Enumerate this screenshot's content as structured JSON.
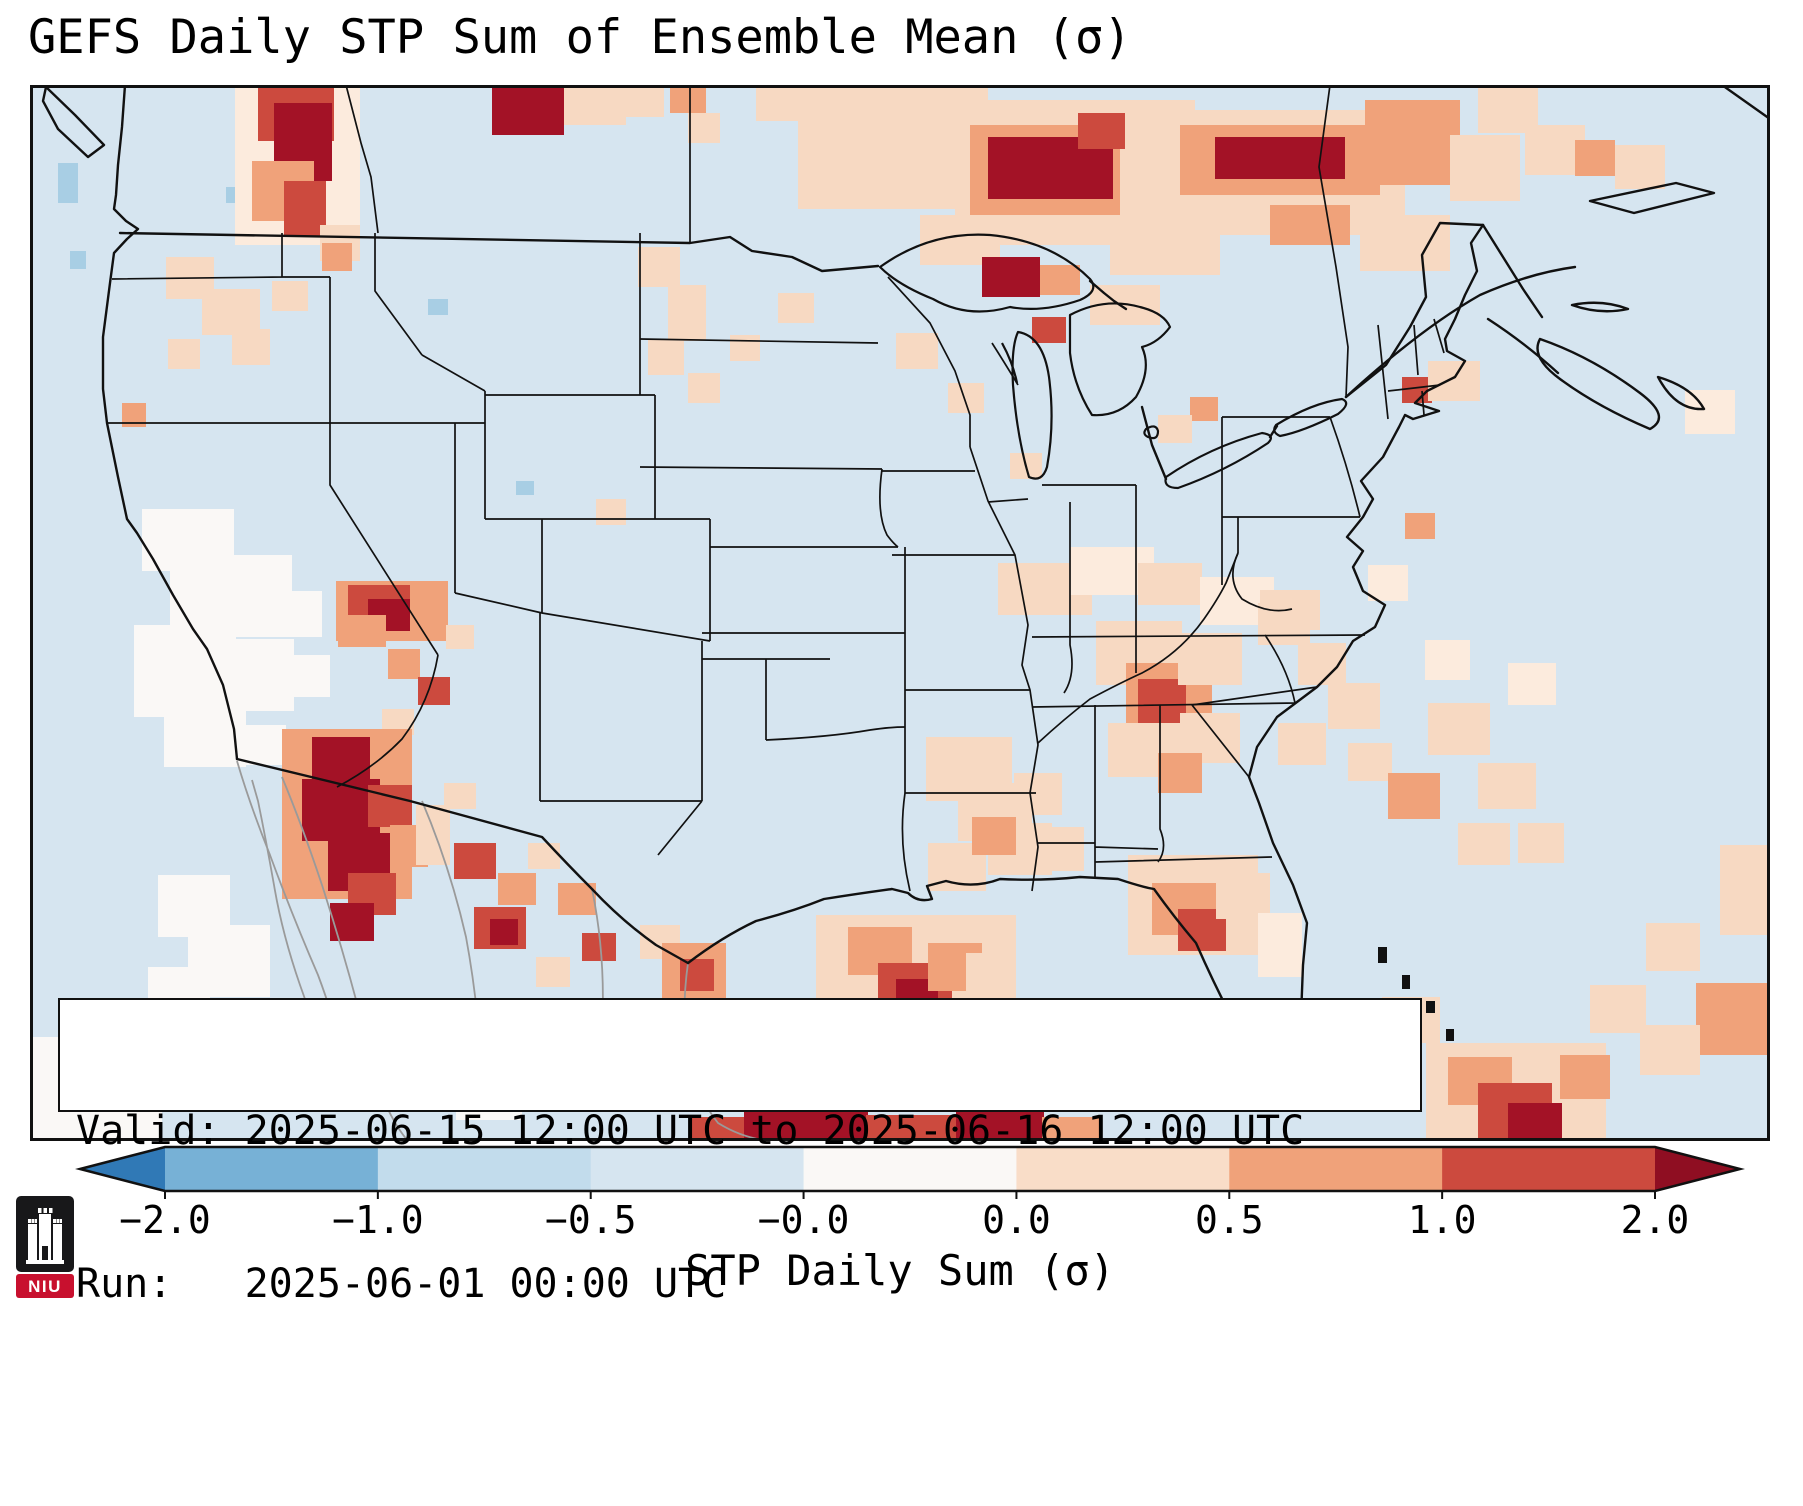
{
  "chart_data": {
    "type": "heatmap",
    "title": "GEFS Daily STP Sum of Ensemble Mean (σ)",
    "units": "σ",
    "annotation": {
      "line1": "Valid: 2025-06-15 12:00 UTC to 2025-06-16 12:00 UTC",
      "line2": "Run:   2025-06-01 00:00 UTC"
    },
    "colorbar": {
      "label": "STP Daily Sum (σ)",
      "tick_labels": [
        "−2.0",
        "−1.0",
        "−0.5",
        "−0.0",
        "0.0",
        "0.5",
        "1.0",
        "2.0"
      ],
      "segment_colors": [
        "#77b1d6",
        "#c2dcec",
        "#d6e5f0",
        "#faf8f6",
        "#f9ddc8",
        "#f0a27a",
        "#cc4a3e"
      ],
      "extend_low_color": "#3079b6",
      "extend_high_color": "#8f0e22",
      "orientation": "horizontal"
    },
    "background_value_class": "bg",
    "value_classes": {
      "b": {
        "color": "#a8cee4",
        "range": "-1.0 to -0.5 σ"
      },
      "bg": {
        "color": "#d6e5f0",
        "range": "-0.5 to -0.0 σ"
      },
      "w": {
        "color": "#faf8f6",
        "range": "-0.0 to 0.0 σ"
      },
      "lp": {
        "color": "#fcebdd",
        "range": "0.0 to 0.5 σ (weak)"
      },
      "p": {
        "color": "#f7d9c2",
        "range": "0.0 to 0.5 σ"
      },
      "s": {
        "color": "#f0a27a",
        "range": "0.5 to 1.0 σ"
      },
      "r": {
        "color": "#cc4a3e",
        "range": "1.0 to 2.0 σ"
      },
      "dr": {
        "color": "#a31226",
        "range": "> 2.0 σ"
      }
    },
    "cells": [
      [
        "b",
        28,
        78,
        20,
        40
      ],
      [
        "b",
        40,
        166,
        16,
        18
      ],
      [
        "b",
        196,
        102,
        18,
        16
      ],
      [
        "b",
        398,
        214,
        20,
        16
      ],
      [
        "b",
        486,
        396,
        18,
        14
      ],
      [
        "w",
        112,
        424,
        92,
        62
      ],
      [
        "w",
        140,
        470,
        122,
        82
      ],
      [
        "w",
        104,
        540,
        102,
        92
      ],
      [
        "w",
        172,
        554,
        92,
        72
      ],
      [
        "w",
        230,
        506,
        62,
        46
      ],
      [
        "w",
        254,
        570,
        46,
        42
      ],
      [
        "w",
        134,
        626,
        82,
        56
      ],
      [
        "w",
        196,
        640,
        60,
        40
      ],
      [
        "w",
        128,
        790,
        72,
        62
      ],
      [
        "w",
        158,
        840,
        82,
        72
      ],
      [
        "w",
        118,
        882,
        62,
        52
      ],
      [
        "w",
        0,
        952,
        132,
        104
      ],
      [
        "w",
        330,
        952,
        64,
        46
      ],
      [
        "w",
        210,
        920,
        56,
        46
      ],
      [
        "w",
        426,
        975,
        66,
        60
      ],
      [
        "lp",
        205,
        0,
        125,
        160
      ],
      [
        "r",
        228,
        0,
        76,
        56
      ],
      [
        "dr",
        244,
        18,
        58,
        78
      ],
      [
        "s",
        222,
        76,
        62,
        60
      ],
      [
        "r",
        254,
        96,
        42,
        56
      ],
      [
        "p",
        290,
        140,
        40,
        36
      ],
      [
        "s",
        292,
        158,
        30,
        28
      ],
      [
        "dr",
        462,
        0,
        72,
        50
      ],
      [
        "p",
        534,
        0,
        62,
        40
      ],
      [
        "p",
        596,
        0,
        38,
        32
      ],
      [
        "s",
        640,
        0,
        36,
        28
      ],
      [
        "p",
        658,
        28,
        32,
        30
      ],
      [
        "p",
        726,
        0,
        52,
        36
      ],
      [
        "p",
        768,
        0,
        190,
        124
      ],
      [
        "p",
        925,
        15,
        240,
        145
      ],
      [
        "s",
        940,
        40,
        150,
        90
      ],
      [
        "dr",
        958,
        52,
        125,
        62
      ],
      [
        "r",
        1048,
        28,
        60,
        36
      ],
      [
        "p",
        1095,
        25,
        280,
        125
      ],
      [
        "s",
        1150,
        40,
        200,
        70
      ],
      [
        "dr",
        1185,
        52,
        130,
        42
      ],
      [
        "s",
        1335,
        15,
        95,
        85
      ],
      [
        "p",
        1420,
        50,
        70,
        66
      ],
      [
        "p",
        890,
        130,
        80,
        50
      ],
      [
        "p",
        1080,
        130,
        110,
        60
      ],
      [
        "s",
        1240,
        120,
        80,
        40
      ],
      [
        "p",
        1330,
        130,
        90,
        56
      ],
      [
        "p",
        1448,
        0,
        60,
        48
      ],
      [
        "p",
        1495,
        40,
        60,
        50
      ],
      [
        "s",
        1545,
        55,
        40,
        36
      ],
      [
        "p",
        1585,
        60,
        50,
        44
      ],
      [
        "dr",
        952,
        172,
        58,
        40
      ],
      [
        "s",
        1010,
        180,
        40,
        30
      ],
      [
        "r",
        1002,
        232,
        34,
        26
      ],
      [
        "p",
        1060,
        200,
        70,
        40
      ],
      [
        "p",
        608,
        162,
        42,
        40
      ],
      [
        "p",
        638,
        200,
        38,
        56
      ],
      [
        "p",
        618,
        254,
        36,
        36
      ],
      [
        "p",
        658,
        288,
        32,
        30
      ],
      [
        "p",
        748,
        208,
        36,
        30
      ],
      [
        "p",
        700,
        250,
        30,
        26
      ],
      [
        "p",
        866,
        248,
        42,
        36
      ],
      [
        "p",
        918,
        298,
        36,
        30
      ],
      [
        "p",
        980,
        368,
        32,
        26
      ],
      [
        "s",
        1160,
        312,
        28,
        24
      ],
      [
        "p",
        1128,
        330,
        34,
        28
      ],
      [
        "p",
        136,
        172,
        48,
        42
      ],
      [
        "p",
        172,
        204,
        58,
        46
      ],
      [
        "p",
        202,
        244,
        38,
        36
      ],
      [
        "p",
        138,
        254,
        32,
        30
      ],
      [
        "s",
        92,
        318,
        24,
        24
      ],
      [
        "p",
        242,
        196,
        36,
        30
      ],
      [
        "p",
        566,
        414,
        30,
        26
      ],
      [
        "s",
        306,
        496,
        112,
        60
      ],
      [
        "r",
        318,
        500,
        62,
        38
      ],
      [
        "dr",
        338,
        514,
        42,
        32
      ],
      [
        "s",
        308,
        530,
        48,
        32
      ],
      [
        "s",
        358,
        564,
        32,
        30
      ],
      [
        "r",
        388,
        592,
        32,
        28
      ],
      [
        "p",
        352,
        624,
        32,
        26
      ],
      [
        "p",
        416,
        540,
        28,
        24
      ],
      [
        "s",
        252,
        644,
        130,
        170
      ],
      [
        "dr",
        282,
        652,
        58,
        48
      ],
      [
        "dr",
        272,
        694,
        78,
        62
      ],
      [
        "dr",
        298,
        748,
        62,
        58
      ],
      [
        "r",
        338,
        700,
        44,
        42
      ],
      [
        "r",
        318,
        788,
        48,
        42
      ],
      [
        "dr",
        300,
        818,
        44,
        38
      ],
      [
        "s",
        360,
        740,
        38,
        42
      ],
      [
        "p",
        386,
        720,
        34,
        60
      ],
      [
        "r",
        424,
        758,
        42,
        36
      ],
      [
        "s",
        468,
        788,
        38,
        32
      ],
      [
        "r",
        444,
        822,
        52,
        42
      ],
      [
        "dr",
        460,
        834,
        28,
        26
      ],
      [
        "p",
        498,
        758,
        32,
        26
      ],
      [
        "s",
        528,
        798,
        38,
        32
      ],
      [
        "r",
        552,
        848,
        34,
        28
      ],
      [
        "p",
        414,
        698,
        32,
        26
      ],
      [
        "p",
        506,
        872,
        34,
        30
      ],
      [
        "p",
        610,
        840,
        40,
        34
      ],
      [
        "s",
        632,
        858,
        64,
        58
      ],
      [
        "r",
        650,
        874,
        34,
        32
      ],
      [
        "p",
        786,
        830,
        200,
        150
      ],
      [
        "s",
        818,
        842,
        64,
        48
      ],
      [
        "r",
        848,
        878,
        74,
        58
      ],
      [
        "dr",
        866,
        894,
        42,
        36
      ],
      [
        "s",
        898,
        858,
        54,
        48
      ],
      [
        "p",
        936,
        868,
        46,
        42
      ],
      [
        "p",
        896,
        652,
        86,
        64
      ],
      [
        "p",
        928,
        698,
        74,
        58
      ],
      [
        "p",
        958,
        738,
        64,
        52
      ],
      [
        "p",
        898,
        758,
        58,
        48
      ],
      [
        "p",
        984,
        688,
        48,
        42
      ],
      [
        "s",
        942,
        732,
        44,
        38
      ],
      [
        "p",
        1002,
        742,
        52,
        44
      ],
      [
        "p",
        968,
        478,
        94,
        52
      ],
      [
        "lp",
        1040,
        462,
        84,
        48
      ],
      [
        "p",
        1108,
        478,
        64,
        42
      ],
      [
        "lp",
        1170,
        492,
        74,
        48
      ],
      [
        "p",
        1230,
        505,
        60,
        40
      ],
      [
        "p",
        1066,
        536,
        86,
        64
      ],
      [
        "s",
        1096,
        578,
        86,
        74
      ],
      [
        "r",
        1108,
        594,
        48,
        58
      ],
      [
        "p",
        1148,
        548,
        64,
        52
      ],
      [
        "p",
        1078,
        638,
        74,
        54
      ],
      [
        "p",
        1150,
        628,
        60,
        50
      ],
      [
        "s",
        1128,
        668,
        44,
        40
      ],
      [
        "p",
        1098,
        770,
        130,
        100
      ],
      [
        "s",
        1122,
        798,
        64,
        52
      ],
      [
        "r",
        1148,
        824,
        48,
        42
      ],
      [
        "p",
        1186,
        788,
        54,
        46
      ],
      [
        "lp",
        1228,
        828,
        44,
        64
      ],
      [
        "p",
        1228,
        518,
        52,
        42
      ],
      [
        "p",
        1268,
        558,
        48,
        42
      ],
      [
        "p",
        1298,
        598,
        52,
        46
      ],
      [
        "p",
        1248,
        638,
        48,
        42
      ],
      [
        "p",
        1318,
        658,
        44,
        38
      ],
      [
        "s",
        1358,
        688,
        52,
        46
      ],
      [
        "p",
        1398,
        618,
        62,
        52
      ],
      [
        "p",
        1448,
        678,
        58,
        46
      ],
      [
        "lp",
        1478,
        578,
        48,
        42
      ],
      [
        "p",
        1428,
        738,
        52,
        42
      ],
      [
        "p",
        1488,
        738,
        46,
        40
      ],
      [
        "lp",
        1395,
        555,
        45,
        40
      ],
      [
        "r",
        1372,
        292,
        30,
        26
      ],
      [
        "p",
        1398,
        276,
        52,
        40
      ],
      [
        "lp",
        1338,
        480,
        40,
        36
      ],
      [
        "s",
        1375,
        428,
        30,
        26
      ],
      [
        "lp",
        1655,
        305,
        50,
        44
      ],
      [
        "p",
        1616,
        838,
        54,
        48
      ],
      [
        "s",
        1666,
        898,
        74,
        72
      ],
      [
        "p",
        1610,
        940,
        60,
        50
      ],
      [
        "p",
        1690,
        760,
        50,
        90
      ],
      [
        "p",
        1560,
        900,
        56,
        48
      ],
      [
        "p",
        1352,
        912,
        58,
        46
      ],
      [
        "p",
        1396,
        958,
        180,
        98
      ],
      [
        "s",
        1418,
        972,
        64,
        48
      ],
      [
        "r",
        1448,
        998,
        74,
        58
      ],
      [
        "dr",
        1478,
        1018,
        54,
        38
      ],
      [
        "s",
        1530,
        970,
        50,
        44
      ],
      [
        "r",
        660,
        1032,
        56,
        24
      ],
      [
        "dr",
        714,
        1026,
        124,
        30
      ],
      [
        "r",
        836,
        1030,
        92,
        26
      ],
      [
        "dr",
        926,
        1026,
        88,
        30
      ],
      [
        "s",
        1012,
        1032,
        60,
        24
      ]
    ]
  },
  "logo": {
    "text": "NIU"
  }
}
